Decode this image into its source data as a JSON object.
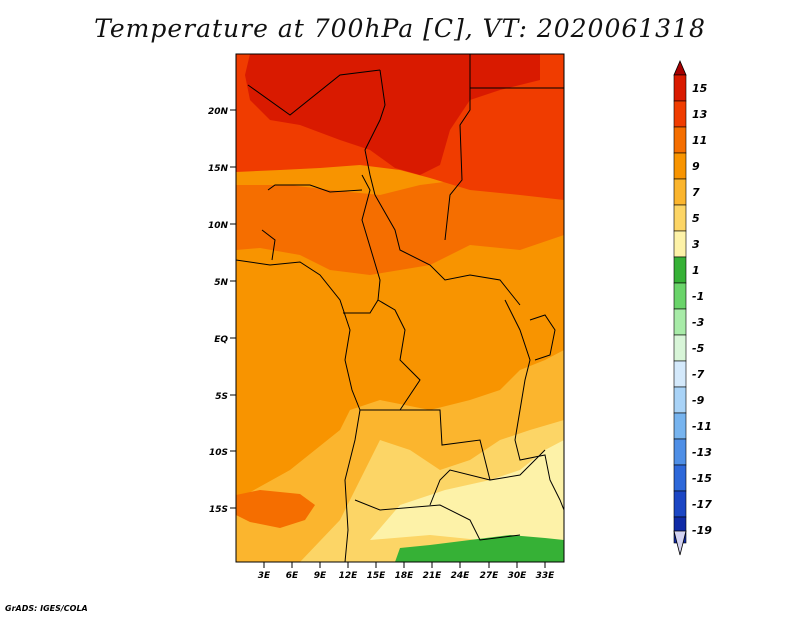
{
  "title": "Temperature at 700hPa [C], VT: 2020061318",
  "credit": "GrADS: IGES/COLA",
  "map": {
    "lat_labels": [
      "20N",
      "15N",
      "10N",
      "5N",
      "EQ",
      "5S",
      "10S",
      "15S"
    ],
    "lon_labels": [
      "3E",
      "6E",
      "9E",
      "12E",
      "15E",
      "18E",
      "21E",
      "24E",
      "27E",
      "30E",
      "33E"
    ],
    "shading": [
      {
        "region": "north-sahara",
        "class": "13-15"
      },
      {
        "region": "sahel",
        "class": "11-13"
      },
      {
        "region": "central-basin",
        "class": "9-11"
      },
      {
        "region": "southern-angola-zambia",
        "class": "5-9"
      },
      {
        "region": "southern-edge",
        "class": "1-3"
      }
    ]
  },
  "colorbar": {
    "labels": [
      "15",
      "13",
      "11",
      "9",
      "7",
      "5",
      "3",
      "1",
      "-1",
      "-3",
      "-5",
      "-7",
      "-9",
      "-11",
      "-13",
      "-15",
      "-17",
      "-19"
    ],
    "colors": [
      "#a50000",
      "#d91a00",
      "#f03c00",
      "#f56e00",
      "#f89400",
      "#fbb52e",
      "#fcd566",
      "#fdf2a8",
      "#36b136",
      "#6ad46a",
      "#a8eba8",
      "#d8f5d8",
      "#d4e9fb",
      "#a9d3f7",
      "#77b4ef",
      "#4f8fe6",
      "#2e68d9",
      "#1b46c4",
      "#0f2aa6",
      "#0a1470"
    ]
  },
  "colors": {
    "t15": "#a50000",
    "t13": "#d91a00",
    "t11": "#f03c00",
    "t9": "#f56e00",
    "t7": "#f89400",
    "t5": "#fbb52e",
    "t3": "#fcd566",
    "t1": "#fdf2a8",
    "tm1": "#36b136",
    "tm3": "#6ad46a"
  }
}
